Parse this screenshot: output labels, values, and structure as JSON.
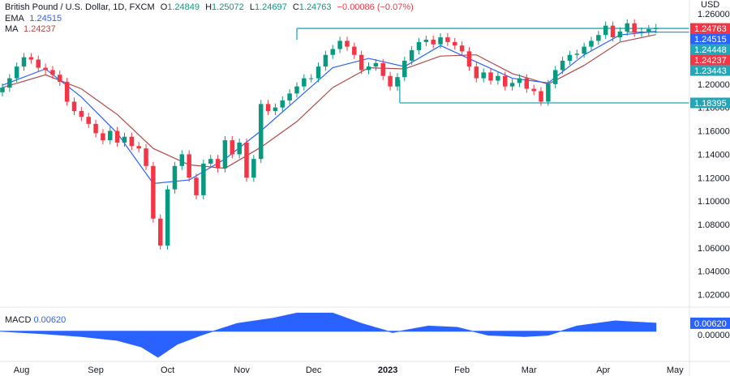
{
  "header": {
    "symbol": "British Pound / U.S. Dollar, 1D, FXCM",
    "open_label": "O",
    "open": "1.24849",
    "high_label": "H",
    "high": "1.25072",
    "low_label": "L",
    "low": "1.24697",
    "close_label": "C",
    "close": "1.24763",
    "change": "−0.00086 (−0.07%)"
  },
  "indicators": {
    "ema_label": "EMA",
    "ema_value": "1.24515",
    "ma_label": "MA",
    "ma_value": "1.24237",
    "macd_label": "MACD",
    "macd_value": "0.00620"
  },
  "colors": {
    "up": "#089981",
    "down": "#f23645",
    "ema": "#2962ff",
    "ma": "#b24a4a",
    "level": "#22a7b8",
    "macd": "#2962ff",
    "grid": "#eef0f3",
    "axis_text": "#131722"
  },
  "chart_data": {
    "type": "candlestick",
    "title": "British Pound / U.S. Dollar, 1D, FXCM",
    "currency": "USD",
    "ylim": [
      1.01,
      1.265
    ],
    "y_ticks": [
      "1.26000",
      "1.24000",
      "1.22000",
      "1.20000",
      "1.18000",
      "1.16000",
      "1.14000",
      "1.12000",
      "1.10000",
      "1.08000",
      "1.06000",
      "1.04000",
      "1.02000"
    ],
    "x_ticks": [
      {
        "label": "Aug",
        "day": 0
      },
      {
        "label": "Sep",
        "day": 31
      },
      {
        "label": "Oct",
        "day": 61
      },
      {
        "label": "Nov",
        "day": 92
      },
      {
        "label": "Dec",
        "day": 122
      },
      {
        "label": "2023",
        "day": 153
      },
      {
        "label": "Feb",
        "day": 184
      },
      {
        "label": "Mar",
        "day": 212
      },
      {
        "label": "Apr",
        "day": 243
      },
      {
        "label": "May",
        "day": 273
      }
    ],
    "x_range_days": [
      -9,
      279
    ],
    "candles": [
      {
        "day": -8,
        "close": 1.197
      },
      {
        "day": -5,
        "close": 1.205
      },
      {
        "day": -2,
        "close": 1.215
      },
      {
        "day": 1,
        "close": 1.223
      },
      {
        "day": 4,
        "close": 1.221
      },
      {
        "day": 7,
        "close": 1.214
      },
      {
        "day": 10,
        "close": 1.212
      },
      {
        "day": 13,
        "close": 1.208
      },
      {
        "day": 16,
        "close": 1.202
      },
      {
        "day": 19,
        "close": 1.185
      },
      {
        "day": 22,
        "close": 1.177
      },
      {
        "day": 25,
        "close": 1.172
      },
      {
        "day": 28,
        "close": 1.166
      },
      {
        "day": 31,
        "close": 1.158
      },
      {
        "day": 34,
        "close": 1.152
      },
      {
        "day": 37,
        "close": 1.16
      },
      {
        "day": 40,
        "close": 1.15
      },
      {
        "day": 43,
        "close": 1.155
      },
      {
        "day": 46,
        "close": 1.147
      },
      {
        "day": 49,
        "close": 1.145
      },
      {
        "day": 52,
        "close": 1.13
      },
      {
        "day": 55,
        "close": 1.085
      },
      {
        "day": 58,
        "close": 1.062
      },
      {
        "day": 61,
        "close": 1.11
      },
      {
        "day": 64,
        "close": 1.13
      },
      {
        "day": 67,
        "close": 1.14
      },
      {
        "day": 70,
        "close": 1.12
      },
      {
        "day": 73,
        "close": 1.105
      },
      {
        "day": 76,
        "close": 1.132
      },
      {
        "day": 79,
        "close": 1.136
      },
      {
        "day": 82,
        "close": 1.128
      },
      {
        "day": 85,
        "close": 1.152
      },
      {
        "day": 88,
        "close": 1.14
      },
      {
        "day": 91,
        "close": 1.15
      },
      {
        "day": 94,
        "close": 1.12
      },
      {
        "day": 97,
        "close": 1.136
      },
      {
        "day": 100,
        "close": 1.183
      },
      {
        "day": 103,
        "close": 1.177
      },
      {
        "day": 106,
        "close": 1.18
      },
      {
        "day": 109,
        "close": 1.186
      },
      {
        "day": 112,
        "close": 1.192
      },
      {
        "day": 115,
        "close": 1.198
      },
      {
        "day": 118,
        "close": 1.205
      },
      {
        "day": 121,
        "close": 1.205
      },
      {
        "day": 124,
        "close": 1.215
      },
      {
        "day": 127,
        "close": 1.225
      },
      {
        "day": 130,
        "close": 1.23
      },
      {
        "day": 133,
        "close": 1.237
      },
      {
        "day": 136,
        "close": 1.232
      },
      {
        "day": 139,
        "close": 1.225
      },
      {
        "day": 142,
        "close": 1.212
      },
      {
        "day": 145,
        "close": 1.215
      },
      {
        "day": 148,
        "close": 1.218
      },
      {
        "day": 151,
        "close": 1.207
      },
      {
        "day": 154,
        "close": 1.198
      },
      {
        "day": 157,
        "close": 1.206
      },
      {
        "day": 160,
        "close": 1.22
      },
      {
        "day": 163,
        "close": 1.229
      },
      {
        "day": 166,
        "close": 1.236
      },
      {
        "day": 169,
        "close": 1.238
      },
      {
        "day": 172,
        "close": 1.234
      },
      {
        "day": 175,
        "close": 1.24
      },
      {
        "day": 178,
        "close": 1.236
      },
      {
        "day": 181,
        "close": 1.233
      },
      {
        "day": 184,
        "close": 1.228
      },
      {
        "day": 187,
        "close": 1.215
      },
      {
        "day": 190,
        "close": 1.205
      },
      {
        "day": 193,
        "close": 1.21
      },
      {
        "day": 196,
        "close": 1.203
      },
      {
        "day": 199,
        "close": 1.207
      },
      {
        "day": 202,
        "close": 1.198
      },
      {
        "day": 205,
        "close": 1.201
      },
      {
        "day": 208,
        "close": 1.205
      },
      {
        "day": 211,
        "close": 1.196
      },
      {
        "day": 214,
        "close": 1.194
      },
      {
        "day": 217,
        "close": 1.185
      },
      {
        "day": 220,
        "close": 1.2
      },
      {
        "day": 223,
        "close": 1.212
      },
      {
        "day": 226,
        "close": 1.22
      },
      {
        "day": 229,
        "close": 1.225
      },
      {
        "day": 232,
        "close": 1.226
      },
      {
        "day": 235,
        "close": 1.232
      },
      {
        "day": 238,
        "close": 1.237
      },
      {
        "day": 241,
        "close": 1.242
      },
      {
        "day": 244,
        "close": 1.25
      },
      {
        "day": 247,
        "close": 1.24
      },
      {
        "day": 250,
        "close": 1.245
      },
      {
        "day": 253,
        "close": 1.252
      },
      {
        "day": 256,
        "close": 1.244
      },
      {
        "day": 259,
        "close": 1.245
      },
      {
        "day": 262,
        "close": 1.247
      },
      {
        "day": 265,
        "close": 1.248
      }
    ],
    "ema_series": [
      {
        "day": -8,
        "value": 1.199
      },
      {
        "day": 10,
        "value": 1.213
      },
      {
        "day": 25,
        "value": 1.189
      },
      {
        "day": 40,
        "value": 1.158
      },
      {
        "day": 55,
        "value": 1.115
      },
      {
        "day": 70,
        "value": 1.118
      },
      {
        "day": 85,
        "value": 1.136
      },
      {
        "day": 100,
        "value": 1.16
      },
      {
        "day": 115,
        "value": 1.187
      },
      {
        "day": 130,
        "value": 1.214
      },
      {
        "day": 145,
        "value": 1.222
      },
      {
        "day": 160,
        "value": 1.215
      },
      {
        "day": 175,
        "value": 1.233
      },
      {
        "day": 190,
        "value": 1.219
      },
      {
        "day": 205,
        "value": 1.205
      },
      {
        "day": 220,
        "value": 1.201
      },
      {
        "day": 235,
        "value": 1.225
      },
      {
        "day": 250,
        "value": 1.242
      },
      {
        "day": 265,
        "value": 1.24515
      }
    ],
    "ma_series": [
      {
        "day": -8,
        "value": 1.197
      },
      {
        "day": 10,
        "value": 1.208
      },
      {
        "day": 25,
        "value": 1.196
      },
      {
        "day": 40,
        "value": 1.174
      },
      {
        "day": 55,
        "value": 1.145
      },
      {
        "day": 70,
        "value": 1.131
      },
      {
        "day": 85,
        "value": 1.128
      },
      {
        "day": 100,
        "value": 1.146
      },
      {
        "day": 115,
        "value": 1.168
      },
      {
        "day": 130,
        "value": 1.197
      },
      {
        "day": 145,
        "value": 1.214
      },
      {
        "day": 160,
        "value": 1.213
      },
      {
        "day": 175,
        "value": 1.224
      },
      {
        "day": 190,
        "value": 1.225
      },
      {
        "day": 205,
        "value": 1.209
      },
      {
        "day": 220,
        "value": 1.2
      },
      {
        "day": 235,
        "value": 1.216
      },
      {
        "day": 250,
        "value": 1.236
      },
      {
        "day": 265,
        "value": 1.24237
      }
    ],
    "range_lines": [
      {
        "name": "upper-range-line",
        "value": 1.24763,
        "from_day": 115
      },
      {
        "name": "lower-range-line",
        "value": 1.18395,
        "from_day": 158
      },
      {
        "name": "mid-range-line",
        "value": 1.24448,
        "from_day": 253
      }
    ],
    "price_labels": [
      {
        "name": "price-label-close",
        "text": "1.24763",
        "value": 1.24763,
        "color": "#f23645"
      },
      {
        "name": "price-label-ema",
        "text": "1.24515",
        "value": 1.24515,
        "color": "#2962ff"
      },
      {
        "name": "price-label-mid",
        "text": "1.24448",
        "value": 1.24448,
        "color": "#22a7b8"
      },
      {
        "name": "price-label-ma",
        "text": "1.24237",
        "value": 1.24237,
        "color": "#f23645"
      },
      {
        "name": "price-label-low",
        "text": "1.23443",
        "value": 1.23443,
        "color": "#22a7b8"
      },
      {
        "name": "price-label-support",
        "text": "1.18395",
        "value": 1.18395,
        "color": "#22a7b8"
      }
    ],
    "macd": {
      "ylim": [
        -0.022,
        0.018
      ],
      "zero_label": "0.00000",
      "series": [
        {
          "day": -9,
          "value": 0.0
        },
        {
          "day": 10,
          "value": -0.002
        },
        {
          "day": 25,
          "value": -0.004
        },
        {
          "day": 40,
          "value": -0.007
        },
        {
          "day": 50,
          "value": -0.012
        },
        {
          "day": 57,
          "value": -0.02
        },
        {
          "day": 65,
          "value": -0.01
        },
        {
          "day": 75,
          "value": -0.003
        },
        {
          "day": 90,
          "value": 0.006
        },
        {
          "day": 105,
          "value": 0.01
        },
        {
          "day": 115,
          "value": 0.014
        },
        {
          "day": 130,
          "value": 0.014
        },
        {
          "day": 142,
          "value": 0.006
        },
        {
          "day": 155,
          "value": -0.001
        },
        {
          "day": 170,
          "value": 0.004
        },
        {
          "day": 182,
          "value": 0.003
        },
        {
          "day": 195,
          "value": -0.003
        },
        {
          "day": 210,
          "value": -0.004
        },
        {
          "day": 220,
          "value": -0.003
        },
        {
          "day": 232,
          "value": 0.004
        },
        {
          "day": 248,
          "value": 0.008
        },
        {
          "day": 265,
          "value": 0.0062
        }
      ]
    }
  }
}
